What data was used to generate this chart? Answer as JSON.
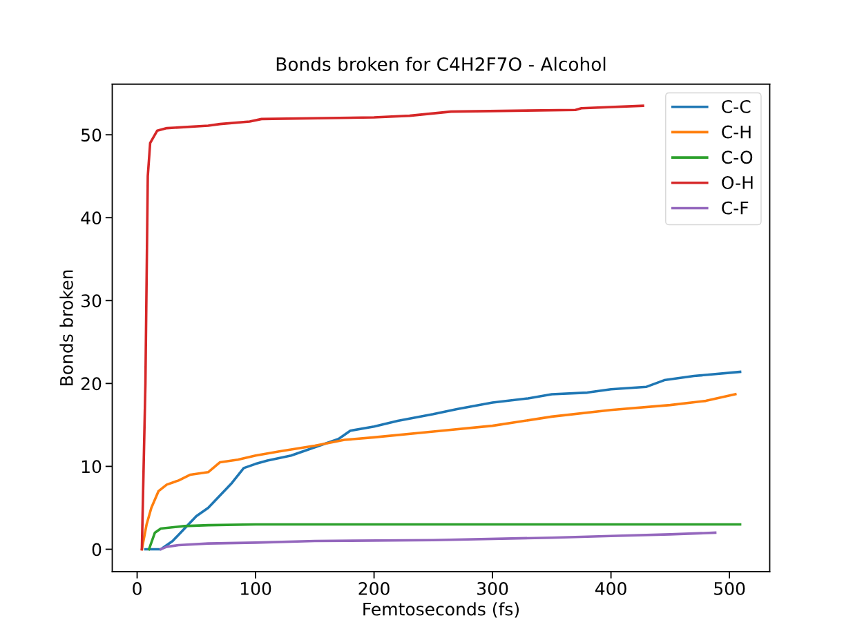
{
  "chart_data": {
    "type": "line",
    "title": "Bonds broken for C4H2F7O - Alcohol",
    "xlabel": "Femtoseconds (fs)",
    "ylabel": "Bonds broken",
    "xlim": [
      -21,
      534
    ],
    "ylim": [
      -2.7,
      56.1
    ],
    "xticks": [
      0,
      100,
      200,
      300,
      400,
      500
    ],
    "yticks": [
      0,
      10,
      20,
      30,
      40,
      50
    ],
    "grid": false,
    "legend": "top right",
    "series": [
      {
        "name": "C-C",
        "color": "#1f77b4",
        "x": [
          7,
          20,
          30,
          40,
          50,
          60,
          70,
          80,
          90,
          100,
          110,
          130,
          150,
          170,
          180,
          200,
          220,
          250,
          270,
          300,
          330,
          350,
          380,
          400,
          430,
          445,
          470,
          509
        ],
        "values": [
          0,
          0,
          1,
          2.5,
          4,
          5,
          6.5,
          8,
          9.8,
          10.3,
          10.7,
          11.3,
          12.3,
          13.3,
          14.3,
          14.8,
          15.5,
          16.3,
          16.9,
          17.7,
          18.2,
          18.7,
          18.9,
          19.3,
          19.6,
          20.4,
          20.9,
          21.4
        ]
      },
      {
        "name": "C-H",
        "color": "#ff7f0e",
        "x": [
          4,
          8,
          12,
          18,
          25,
          35,
          45,
          60,
          70,
          85,
          100,
          120,
          150,
          175,
          200,
          250,
          300,
          350,
          400,
          450,
          480,
          505
        ],
        "values": [
          0,
          3,
          5,
          7,
          7.8,
          8.3,
          9,
          9.3,
          10.5,
          10.8,
          11.3,
          11.8,
          12.5,
          13.2,
          13.5,
          14.2,
          14.9,
          16,
          16.8,
          17.4,
          17.9,
          18.7
        ]
      },
      {
        "name": "C-O",
        "color": "#2ca02c",
        "x": [
          10,
          15,
          20,
          40,
          60,
          100,
          509
        ],
        "values": [
          0,
          2,
          2.5,
          2.8,
          2.9,
          3.0,
          3.0
        ]
      },
      {
        "name": "O-H",
        "color": "#d62728",
        "x": [
          4,
          7,
          9,
          11,
          17,
          25,
          60,
          70,
          95,
          105,
          200,
          230,
          265,
          370,
          375,
          427
        ],
        "values": [
          0,
          20,
          45,
          49,
          50.5,
          50.8,
          51.1,
          51.3,
          51.6,
          51.9,
          52.1,
          52.3,
          52.8,
          53,
          53.2,
          53.5
        ]
      },
      {
        "name": "C-F",
        "color": "#9467bd",
        "x": [
          20,
          25,
          35,
          60,
          100,
          150,
          250,
          350,
          400,
          450,
          488
        ],
        "values": [
          0,
          0.3,
          0.5,
          0.7,
          0.8,
          1.0,
          1.1,
          1.4,
          1.6,
          1.8,
          2.0
        ]
      }
    ]
  }
}
